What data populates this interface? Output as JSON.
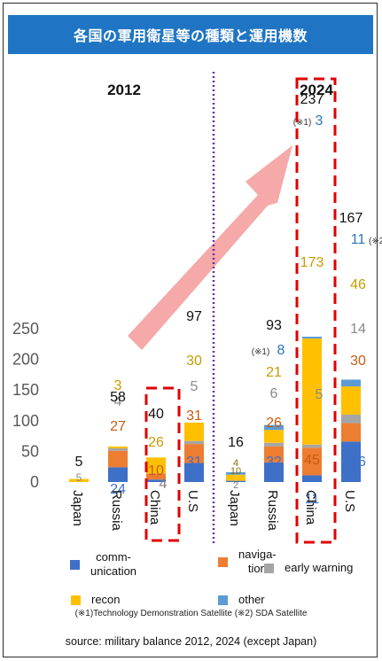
{
  "title": "各国の軍用衛星等の種類と運用機数",
  "colors": {
    "communication": "#3e70c8",
    "navigation": "#ed7d31",
    "early_warning": "#a5a5a5",
    "recon": "#ffc000",
    "other": "#5b9bd5",
    "title_bg": "#1f75c4",
    "arrow": "#f4a0a0",
    "divider": "#7030a0",
    "highlight": "#e00000"
  },
  "chart_data": {
    "type": "bar",
    "stacked": true,
    "ylim": [
      0,
      250
    ],
    "yticks": [
      "0",
      "50",
      "100",
      "150",
      "200",
      "250"
    ],
    "groups": [
      {
        "label": "2012",
        "categories": [
          "Japan",
          "Russia",
          "China",
          "U.S"
        ]
      },
      {
        "label": "2024",
        "categories": [
          "Japan",
          "Russia",
          "China",
          "U.S"
        ]
      }
    ],
    "categories": [
      "Japan",
      "Russia",
      "China",
      "U.S",
      "Japan",
      "Russia",
      "China",
      "U.S"
    ],
    "series": [
      {
        "name": "comm-unication",
        "key": "communication",
        "values": [
          0,
          24,
          4,
          31,
          2,
          32,
          11,
          66
        ],
        "labels": [
          "",
          "24",
          "4",
          "31",
          "2",
          "32",
          "11",
          "66"
        ]
      },
      {
        "name": "naviga-tion",
        "key": "navigation",
        "values": [
          0,
          27,
          10,
          31,
          0,
          26,
          45,
          30
        ],
        "labels": [
          "",
          "27",
          "10",
          "31",
          "",
          "26",
          "45",
          "30"
        ]
      },
      {
        "name": "early warning",
        "key": "early_warning",
        "values": [
          0,
          4,
          0,
          5,
          0,
          6,
          5,
          14
        ],
        "labels": [
          "",
          "4",
          "",
          "5",
          "",
          "6",
          "5",
          "14"
        ]
      },
      {
        "name": "recon",
        "key": "recon",
        "values": [
          5,
          3,
          26,
          30,
          10,
          21,
          173,
          46
        ],
        "labels": [
          "5",
          "3",
          "26",
          "30",
          "10",
          "21",
          "173",
          "46"
        ]
      },
      {
        "name": "other",
        "key": "other",
        "values": [
          0,
          0,
          0,
          0,
          4,
          8,
          3,
          11
        ],
        "labels": [
          "",
          "",
          "",
          "",
          "4",
          "8",
          "3",
          "11"
        ]
      }
    ],
    "totals": [
      "5",
      "58",
      "40",
      "97",
      "16",
      "93",
      "237",
      "167"
    ],
    "notes": {
      "russia_2024_other": "(※1)",
      "china_2024_other": "(※1)",
      "us_2024_other": "(※2"
    },
    "highlighted": [
      "China",
      "China"
    ]
  },
  "legend": [
    {
      "key": "communication",
      "label": "comm-\nunication"
    },
    {
      "key": "navigation",
      "label": "naviga-\ntion"
    },
    {
      "key": "early_warning",
      "label": "early warning"
    },
    {
      "key": "recon",
      "label": "recon"
    },
    {
      "key": "other",
      "label": "other"
    }
  ],
  "footnote": "(※1)Technology Demonstration Satellite (※2) SDA Satellite",
  "source": "source: military balance 2012, 2024 (except Japan)"
}
